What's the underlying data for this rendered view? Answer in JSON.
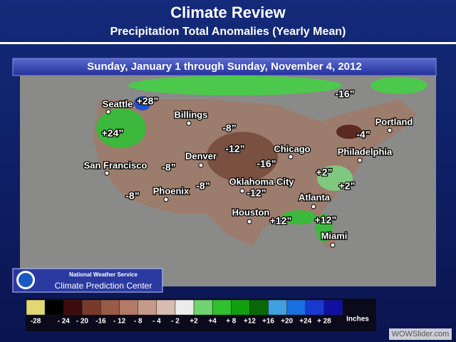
{
  "header": {
    "title": "Climate Review",
    "subtitle": "Precipitation Total Anomalies (Yearly Mean)"
  },
  "banner": "Sunday, January 1 through Sunday, November 4, 2012",
  "map": {
    "labels": [
      "Seattle",
      "+28”",
      "Billings",
      "+24”",
      "-8”",
      "-16”",
      "Portland",
      "-4”",
      "-12”",
      "Chicago",
      "Philadelphia",
      "Denver",
      "-8”",
      "-16”",
      "San Francisco",
      "+2”",
      "+2”",
      "Oklahoma City",
      "-8”",
      "-12”",
      "Phoenix",
      "-8”",
      "Atlanta",
      "Houston",
      "+12”",
      "+12”",
      "Miami"
    ]
  },
  "logo": {
    "line1": "National Weather Service",
    "line2": "Climate Prediction Center"
  },
  "legend": {
    "items": [
      {
        "label": "-28",
        "color": "#e0d870"
      },
      {
        "label": "- 24",
        "color": "#000000"
      },
      {
        "label": "- 20",
        "color": "#3c0c0c"
      },
      {
        "label": "-16",
        "color": "#7a3a2a"
      },
      {
        "label": "- 12",
        "color": "#9a5a48"
      },
      {
        "label": "- 8",
        "color": "#b47a68"
      },
      {
        "label": "- 4",
        "color": "#c49a88"
      },
      {
        "label": "- 2",
        "color": "#d8bcb0"
      },
      {
        "label": "+2",
        "color": "#ececec"
      },
      {
        "label": "+4",
        "color": "#70d470"
      },
      {
        "label": "+ 8",
        "color": "#30c030"
      },
      {
        "label": "+12",
        "color": "#10a010"
      },
      {
        "label": "+16",
        "color": "#086808"
      },
      {
        "label": "+20",
        "color": "#40a0e0"
      },
      {
        "label": "+24",
        "color": "#1870e0"
      },
      {
        "label": "+ 28",
        "color": "#1838d0"
      },
      {
        "label": null,
        "color": "#1010a0"
      }
    ],
    "unit": "Inches"
  },
  "watermark": "WOWSlider.com"
}
